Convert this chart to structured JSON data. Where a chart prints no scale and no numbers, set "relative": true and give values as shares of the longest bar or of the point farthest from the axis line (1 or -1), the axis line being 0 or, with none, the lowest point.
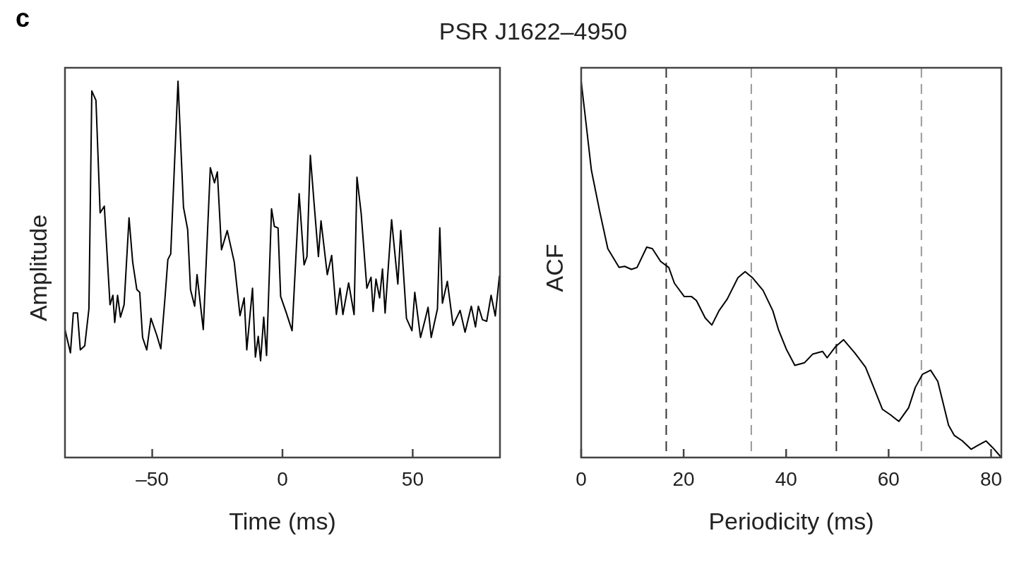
{
  "chart_data": [
    {
      "type": "line",
      "title": "PSR J1622–4950",
      "annotations": [
        "c"
      ],
      "xlabel": "Time (ms)",
      "ylabel": "Amplitude",
      "relative": true,
      "color": "#000000",
      "xlim": [
        -83.5,
        83.5
      ],
      "xticks": [
        {
          "value": -50,
          "label": "–50"
        },
        0,
        50
      ],
      "x": [
        -83.5,
        -81.4,
        -80.3,
        -78.7,
        -77.6,
        -75.9,
        -74.3,
        -73.2,
        -71.6,
        -70.0,
        -68.4,
        -66.2,
        -65.1,
        -64.4,
        -63.3,
        -62.2,
        -60.8,
        -58.9,
        -57.5,
        -55.9,
        -54.8,
        -53.7,
        -52.1,
        -50.5,
        -48.3,
        -46.7,
        -45.1,
        -44.0,
        -42.9,
        -40.1,
        -38.0,
        -36.4,
        -35.3,
        -33.7,
        -32.8,
        -30.4,
        -27.7,
        -26.1,
        -25.0,
        -23.4,
        -21.2,
        -18.5,
        -16.3,
        -14.7,
        -13.7,
        -11.5,
        -10.4,
        -9.3,
        -8.4,
        -7.2,
        -6.1,
        -4.2,
        -3.1,
        -1.7,
        -0.7,
        1.5,
        3.7,
        6.4,
        8.3,
        9.4,
        10.7,
        12.1,
        13.8,
        14.8,
        17.2,
        18.9,
        20.7,
        22.1,
        23.2,
        25.4,
        27.5,
        28.6,
        30.2,
        32.4,
        34.0,
        34.8,
        35.9,
        37.3,
        38.4,
        39.4,
        41.9,
        44.3,
        45.4,
        47.6,
        49.7,
        50.8,
        53.0,
        54.6,
        55.9,
        57.1,
        59.5,
        60.4,
        61.4,
        63.3,
        65.5,
        68.2,
        70.1,
        72.5,
        74.1,
        75.2,
        76.8,
        78.4,
        80.1,
        81.7,
        83.3
      ],
      "values": [
        0.34,
        0.278,
        0.384,
        0.384,
        0.286,
        0.297,
        0.395,
        0.974,
        0.949,
        0.65,
        0.668,
        0.406,
        0.431,
        0.359,
        0.431,
        0.373,
        0.406,
        0.637,
        0.519,
        0.446,
        0.439,
        0.319,
        0.286,
        0.37,
        0.326,
        0.289,
        0.424,
        0.526,
        0.541,
        1.0,
        0.665,
        0.606,
        0.446,
        0.402,
        0.486,
        0.34,
        0.77,
        0.73,
        0.759,
        0.552,
        0.603,
        0.519,
        0.377,
        0.424,
        0.286,
        0.45,
        0.267,
        0.322,
        0.257,
        0.373,
        0.271,
        0.661,
        0.614,
        0.61,
        0.428,
        0.384,
        0.337,
        0.701,
        0.512,
        0.534,
        0.803,
        0.679,
        0.534,
        0.629,
        0.486,
        0.537,
        0.38,
        0.45,
        0.38,
        0.464,
        0.38,
        0.745,
        0.65,
        0.45,
        0.479,
        0.388,
        0.474,
        0.424,
        0.501,
        0.384,
        0.632,
        0.461,
        0.603,
        0.37,
        0.337,
        0.439,
        0.319,
        0.362,
        0.399,
        0.319,
        0.395,
        0.61,
        0.41,
        0.468,
        0.351,
        0.391,
        0.333,
        0.402,
        0.347,
        0.402,
        0.366,
        0.362,
        0.431,
        0.376,
        0.483
      ]
    },
    {
      "type": "line",
      "xlabel": "Periodicity (ms)",
      "ylabel": "ACF",
      "relative": true,
      "color": "#000000",
      "xlim": [
        0,
        82
      ],
      "xticks": [
        0,
        20,
        40,
        60,
        80
      ],
      "x": [
        0,
        0.9,
        2.0,
        3.6,
        5.2,
        7.4,
        8.5,
        9.8,
        10.9,
        12.8,
        13.9,
        15.5,
        17.1,
        18.2,
        20.1,
        21.5,
        22.5,
        24.2,
        25.5,
        26.9,
        28.5,
        30.6,
        32.0,
        33.4,
        35.5,
        37.4,
        38.5,
        40.1,
        41.7,
        43.6,
        45.2,
        47.1,
        48.0,
        49.6,
        51.2,
        53.4,
        55.5,
        57.1,
        58.8,
        60.4,
        62.0,
        63.9,
        65.2,
        66.6,
        68.2,
        69.6,
        71.7,
        72.8,
        74.4,
        76.1,
        77.4,
        79.0,
        80.4,
        82.0
      ],
      "values": [
        1.0,
        0.894,
        0.763,
        0.655,
        0.555,
        0.505,
        0.508,
        0.5,
        0.505,
        0.559,
        0.555,
        0.521,
        0.505,
        0.463,
        0.428,
        0.428,
        0.417,
        0.371,
        0.352,
        0.39,
        0.421,
        0.478,
        0.494,
        0.478,
        0.444,
        0.39,
        0.34,
        0.286,
        0.245,
        0.252,
        0.275,
        0.282,
        0.265,
        0.294,
        0.313,
        0.278,
        0.24,
        0.186,
        0.128,
        0.113,
        0.096,
        0.132,
        0.186,
        0.221,
        0.232,
        0.202,
        0.086,
        0.059,
        0.044,
        0.022,
        0.032,
        0.044,
        0.025,
        0
      ],
      "ref_lines": [
        {
          "axis": "x",
          "value": 16.6,
          "color": "#333333",
          "line_style": "dashed"
        },
        {
          "axis": "x",
          "value": 33.2,
          "color": "#999999",
          "line_style": "dashed"
        },
        {
          "axis": "x",
          "value": 49.8,
          "color": "#333333",
          "line_style": "dashed"
        },
        {
          "axis": "x",
          "value": 66.4,
          "color": "#999999",
          "line_style": "dashed"
        }
      ]
    }
  ]
}
